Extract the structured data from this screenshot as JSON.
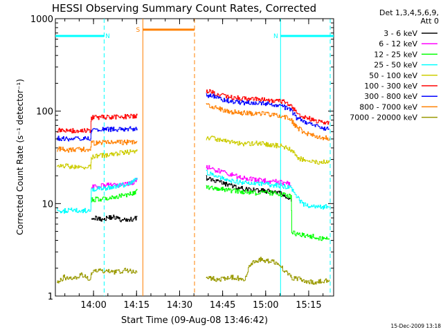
{
  "chart_data": {
    "type": "line",
    "title": "HESSI Observing Summary Count Rates, Corrected",
    "xlabel": "Start Time (09-Aug-08 13:46:42)",
    "ylabel": "Corrected Count Rate (s⁻¹ detector⁻¹)",
    "x_unit": "minutes after 13:46:42",
    "xlim": [
      0,
      97
    ],
    "ylim": [
      1,
      1000
    ],
    "yscale": "log",
    "x_ticks": [
      {
        "t": 13.3,
        "label": "14:00"
      },
      {
        "t": 28.3,
        "label": "14:15"
      },
      {
        "t": 43.3,
        "label": "14:30"
      },
      {
        "t": 58.3,
        "label": "14:45"
      },
      {
        "t": 73.3,
        "label": "15:00"
      },
      {
        "t": 88.3,
        "label": "15:15"
      }
    ],
    "y_ticks": [
      {
        "v": 1,
        "label": "1"
      },
      {
        "v": 10,
        "label": "10"
      },
      {
        "v": 100,
        "label": "100"
      },
      {
        "v": 1000,
        "label": "1000"
      }
    ],
    "legend": {
      "header": [
        "Det 1,3,4,5,6,9,",
        "Att 0"
      ],
      "placement": "right"
    },
    "series": [
      {
        "name": "3 - 6 keV",
        "color": "#000000",
        "points": [
          [
            12.5,
            7.2
          ],
          [
            14,
            7
          ],
          [
            16,
            6.8
          ],
          [
            18,
            7
          ],
          [
            19.7,
            7.2
          ],
          [
            21.5,
            7
          ],
          [
            23,
            6.5
          ],
          [
            25,
            6.7
          ],
          [
            27,
            6.8
          ],
          [
            28.5,
            7.2
          ],
          [
            52.5,
            19
          ],
          [
            56,
            17.5
          ],
          [
            60,
            16
          ],
          [
            65,
            14.5
          ],
          [
            70,
            14
          ],
          [
            75,
            13.5
          ],
          [
            78,
            13
          ],
          [
            80,
            12
          ],
          [
            82.2,
            10.5
          ]
        ]
      },
      {
        "name": "6 - 12 keV",
        "color": "#ff00ff",
        "points": [
          [
            12.5,
            15
          ],
          [
            15,
            15.5
          ],
          [
            19.7,
            16
          ],
          [
            21.5,
            15.5
          ],
          [
            24,
            16
          ],
          [
            27,
            17
          ],
          [
            28.5,
            18
          ],
          [
            52.5,
            25
          ],
          [
            56,
            23
          ],
          [
            60,
            21
          ],
          [
            65,
            19
          ],
          [
            70,
            18
          ],
          [
            75,
            17.5
          ],
          [
            79,
            17
          ],
          [
            81,
            16.5
          ],
          [
            82.2,
            15.5
          ]
        ]
      },
      {
        "name": "12 - 25 keV",
        "color": "#00ff00",
        "points": [
          [
            12.5,
            11
          ],
          [
            15,
            11.2
          ],
          [
            18,
            11.5
          ],
          [
            19.7,
            11.8
          ],
          [
            21,
            12
          ],
          [
            24,
            12.2
          ],
          [
            27,
            13
          ],
          [
            28.5,
            14
          ],
          [
            52.5,
            15
          ],
          [
            56,
            14.5
          ],
          [
            60,
            14
          ],
          [
            65,
            13.5
          ],
          [
            70,
            13
          ],
          [
            75,
            13
          ],
          [
            79,
            12.5
          ],
          [
            82,
            12
          ],
          [
            82.2,
            12
          ],
          [
            82.4,
            5
          ],
          [
            84,
            4.7
          ],
          [
            86,
            4.6
          ],
          [
            88,
            4.5
          ],
          [
            90,
            4.4
          ],
          [
            92,
            4.2
          ],
          [
            95.5,
            4.2
          ]
        ]
      },
      {
        "name": "25 - 50 keV",
        "color": "#00ffff",
        "points": [
          [
            0.5,
            8.5
          ],
          [
            2,
            8.3
          ],
          [
            4,
            8.4
          ],
          [
            6,
            8.5
          ],
          [
            8,
            8.3
          ],
          [
            10,
            8.4
          ],
          [
            12.3,
            8.5
          ],
          [
            12.5,
            14
          ],
          [
            15,
            14.5
          ],
          [
            19.7,
            15
          ],
          [
            21.5,
            15.5
          ],
          [
            24,
            16
          ],
          [
            27,
            17
          ],
          [
            28.5,
            19
          ],
          [
            52.5,
            22
          ],
          [
            56,
            20
          ],
          [
            60,
            18
          ],
          [
            65,
            17
          ],
          [
            70,
            16.5
          ],
          [
            75,
            16
          ],
          [
            79,
            15.5
          ],
          [
            82,
            15
          ],
          [
            84,
            12
          ],
          [
            86,
            10
          ],
          [
            88,
            9.5
          ],
          [
            90,
            9.3
          ],
          [
            92,
            9.2
          ],
          [
            95.5,
            9.2
          ]
        ]
      },
      {
        "name": "50 - 100 keV",
        "color": "#cccc00",
        "points": [
          [
            0.5,
            25
          ],
          [
            4,
            25.5
          ],
          [
            8,
            25
          ],
          [
            12.3,
            25
          ],
          [
            12.5,
            32
          ],
          [
            15,
            33
          ],
          [
            19.7,
            34
          ],
          [
            21.5,
            35
          ],
          [
            24,
            35.5
          ],
          [
            28.5,
            37
          ],
          [
            52.5,
            52
          ],
          [
            56,
            50
          ],
          [
            60,
            47
          ],
          [
            63,
            45
          ],
          [
            66,
            44
          ],
          [
            70,
            45
          ],
          [
            73,
            44
          ],
          [
            75,
            43
          ],
          [
            79,
            42
          ],
          [
            81,
            40
          ],
          [
            82.5,
            37
          ],
          [
            84,
            32
          ],
          [
            86,
            30
          ],
          [
            88,
            29
          ],
          [
            90,
            28.5
          ],
          [
            92,
            28
          ],
          [
            95.5,
            28
          ]
        ]
      },
      {
        "name": "100 - 300 keV",
        "color": "#ff0000",
        "points": [
          [
            0.5,
            62
          ],
          [
            4,
            61
          ],
          [
            8,
            62
          ],
          [
            12.3,
            62
          ],
          [
            12.5,
            85
          ],
          [
            15,
            86
          ],
          [
            19.7,
            87
          ],
          [
            22,
            86
          ],
          [
            24,
            87
          ],
          [
            28.5,
            90
          ],
          [
            52.5,
            165
          ],
          [
            55,
            160
          ],
          [
            58,
            150
          ],
          [
            61,
            142
          ],
          [
            65,
            138
          ],
          [
            70,
            136
          ],
          [
            73,
            135
          ],
          [
            75,
            132
          ],
          [
            78,
            128
          ],
          [
            80,
            125
          ],
          [
            82,
            115
          ],
          [
            84,
            95
          ],
          [
            86,
            88
          ],
          [
            88,
            84
          ],
          [
            90,
            80
          ],
          [
            92,
            78
          ],
          [
            95.5,
            76
          ]
        ]
      },
      {
        "name": "300 - 800 keV",
        "color": "#0000ff",
        "points": [
          [
            0.5,
            51
          ],
          [
            4,
            50
          ],
          [
            8,
            51
          ],
          [
            12.3,
            51
          ],
          [
            12.5,
            62
          ],
          [
            15,
            63
          ],
          [
            19.7,
            64
          ],
          [
            22,
            64
          ],
          [
            24,
            64
          ],
          [
            28.5,
            65
          ],
          [
            52.5,
            150
          ],
          [
            55,
            145
          ],
          [
            58,
            135
          ],
          [
            61,
            128
          ],
          [
            65,
            124
          ],
          [
            70,
            122
          ],
          [
            73,
            121
          ],
          [
            75,
            118
          ],
          [
            78,
            115
          ],
          [
            80,
            110
          ],
          [
            82,
            102
          ],
          [
            84,
            85
          ],
          [
            86,
            78
          ],
          [
            88,
            74
          ],
          [
            90,
            70
          ],
          [
            92,
            67
          ],
          [
            95.5,
            64
          ]
        ]
      },
      {
        "name": "800 - 7000 keV",
        "color": "#ff8000",
        "points": [
          [
            0.5,
            39
          ],
          [
            4,
            38
          ],
          [
            8,
            38.5
          ],
          [
            12.3,
            39
          ],
          [
            12.5,
            45
          ],
          [
            15,
            45.5
          ],
          [
            19.7,
            46
          ],
          [
            22,
            46
          ],
          [
            24,
            46
          ],
          [
            28.5,
            47
          ],
          [
            52.5,
            118
          ],
          [
            55,
            112
          ],
          [
            58,
            104
          ],
          [
            61,
            99
          ],
          [
            65,
            96
          ],
          [
            70,
            94
          ],
          [
            73,
            93
          ],
          [
            75,
            91
          ],
          [
            78,
            89
          ],
          [
            80,
            86
          ],
          [
            82,
            80
          ],
          [
            84,
            67
          ],
          [
            86,
            61
          ],
          [
            88,
            57
          ],
          [
            90,
            54
          ],
          [
            92,
            52
          ],
          [
            95.5,
            51
          ]
        ]
      },
      {
        "name": "7000 - 20000 keV",
        "color": "#999900",
        "points": [
          [
            0.5,
            1.4
          ],
          [
            3,
            1.6
          ],
          [
            6,
            1.5
          ],
          [
            9,
            1.7
          ],
          [
            12.3,
            1.5
          ],
          [
            12.5,
            1.8
          ],
          [
            16,
            1.9
          ],
          [
            20,
            1.8
          ],
          [
            24,
            1.9
          ],
          [
            28.5,
            1.8
          ],
          [
            52.5,
            1.6
          ],
          [
            57,
            1.5
          ],
          [
            62,
            1.6
          ],
          [
            66,
            1.5
          ],
          [
            68,
            2.2
          ],
          [
            71,
            2.5
          ],
          [
            74,
            2.4
          ],
          [
            77,
            2.3
          ],
          [
            79,
            2
          ],
          [
            82,
            1.6
          ],
          [
            86,
            1.5
          ],
          [
            90,
            1.4
          ],
          [
            95.5,
            1.5
          ]
        ]
      }
    ],
    "annotations": [
      {
        "type": "flag",
        "label": "N",
        "color": "#00ffff",
        "start": 0,
        "end": 17,
        "value": 650
      },
      {
        "type": "flag",
        "label": "N",
        "color": "#00ffff",
        "start": 78.5,
        "end": 97,
        "value": 650
      },
      {
        "type": "flag",
        "label": "S",
        "color": "#ff8000",
        "start": 30.5,
        "end": 48.5,
        "value": 760
      }
    ],
    "markers": [
      {
        "color": "#00ffff",
        "style": "dashed",
        "t": 17
      },
      {
        "color": "#00ffff",
        "style": "solid",
        "t": 78.5
      },
      {
        "color": "#00ffff",
        "style": "dashed",
        "t": 95.8
      },
      {
        "color": "#ff8000",
        "style": "solid",
        "t": 30.5
      },
      {
        "color": "#ff8000",
        "style": "dashed",
        "t": 48.5
      }
    ]
  },
  "footer": {
    "timestamp": "15-Dec-2009 13:18"
  }
}
